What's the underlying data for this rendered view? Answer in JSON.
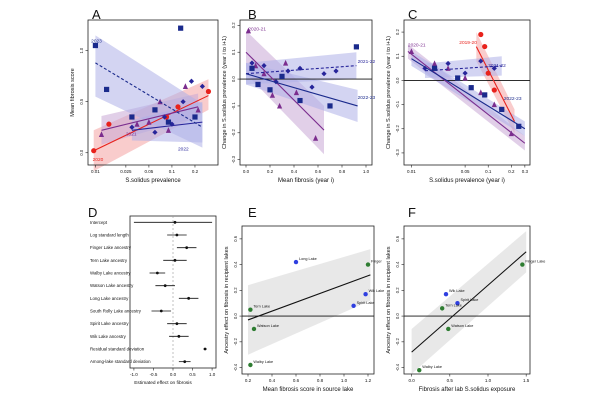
{
  "colors": {
    "y2020": "#e8221c",
    "y2021": "#7b2d8e",
    "y2022": "#27259a",
    "series2023": "#1a2a8c",
    "ciRed": "#f4a3a3",
    "ciPurple": "#c9a8d6",
    "ciBlue": "#aeb0e8",
    "green": "#2e7d32",
    "blueDot": "#2f3fe0",
    "ciGrey": "#d6d6d6"
  },
  "chart_data": [
    {
      "id": "A",
      "panel_label": "A",
      "type": "scatter",
      "xlabel": "S.solidus prevalence",
      "ylabel": "Mean fibrosis score",
      "xscale": "log",
      "xlim": [
        0.008,
        0.4
      ],
      "ylim": [
        -0.12,
        1.3
      ],
      "xticks": [
        0.01,
        0.025,
        0.05,
        0.1,
        0.2
      ],
      "xtick_labels": [
        "0.01",
        "0.025",
        "0.05",
        "0.1",
        "0.2"
      ],
      "yticks": [
        0,
        0.5,
        1
      ],
      "ytick_labels": [
        "0.0",
        "0.5",
        "1.0"
      ],
      "series": [
        {
          "name": "2020",
          "color_key": "y2020",
          "marker": "circle",
          "x": [
            0.0095,
            0.015,
            0.085,
            0.12,
            0.3
          ],
          "y": [
            0.02,
            0.28,
            0.35,
            0.45,
            0.6
          ],
          "fit": {
            "x": [
              0.0095,
              0.3
            ],
            "y": [
              0.02,
              0.56
            ],
            "lo": [
              -0.18,
              0.42
            ],
            "hi": [
              0.22,
              0.72
            ],
            "dash": false
          }
        },
        {
          "name": "2021",
          "color_key": "y2021",
          "marker": "triangle",
          "x": [
            0.012,
            0.035,
            0.05,
            0.07,
            0.09,
            0.15,
            0.22
          ],
          "y": [
            0.18,
            0.28,
            0.3,
            0.5,
            0.22,
            0.65,
            0.42
          ],
          "fit": {
            "x": [
              0.012,
              0.22
            ],
            "y": [
              0.22,
              0.45
            ],
            "lo": [
              0.08,
              0.35
            ],
            "hi": [
              0.36,
              0.58
            ],
            "dash": false
          }
        },
        {
          "name": "2022",
          "color_key": "y2022",
          "marker": "diamond",
          "x": [
            0.03,
            0.06,
            0.08,
            0.1,
            0.14,
            0.18,
            0.25
          ],
          "y": [
            0.25,
            0.2,
            0.35,
            0.28,
            0.5,
            0.7,
            0.65
          ],
          "fit": {
            "x": [
              0.03,
              0.25
            ],
            "y": [
              0.22,
              0.3
            ],
            "lo": [
              0.12,
              0.1
            ],
            "hi": [
              0.32,
              0.5
            ],
            "dash": false
          }
        },
        {
          "name": "2023",
          "color_key": "series2023",
          "marker": "square",
          "x": [
            0.01,
            0.014,
            0.03,
            0.06,
            0.09,
            0.13,
            0.2
          ],
          "y": [
            1.05,
            0.62,
            0.35,
            0.42,
            0.3,
            1.22,
            0.35
          ],
          "fit": {
            "x": [
              0.01,
              0.25
            ],
            "y": [
              0.88,
              0.25
            ],
            "lo": [
              0.55,
              0.05
            ],
            "hi": [
              1.15,
              0.48
            ],
            "dash": true
          }
        }
      ],
      "annotations": [
        {
          "text": "2023",
          "color_key": "series2023",
          "x": 0.0088,
          "y": 1.08
        },
        {
          "text": "2020",
          "color_key": "y2020",
          "x": 0.0092,
          "y": -0.08
        },
        {
          "text": "2021",
          "color_key": "y2021",
          "x": 0.025,
          "y": 0.17
        },
        {
          "text": "2022",
          "color_key": "y2022",
          "x": 0.12,
          "y": 0.02
        }
      ]
    },
    {
      "id": "B",
      "panel_label": "B",
      "type": "scatter",
      "xlabel": "Mean fibrosis (year i)",
      "ylabel": "Change in S.solidus prevalence (year i to i+1)",
      "xlim": [
        -0.05,
        1.05
      ],
      "ylim": [
        -0.32,
        0.22
      ],
      "xticks": [
        0,
        0.2,
        0.4,
        0.6,
        0.8,
        1
      ],
      "xtick_labels": [
        "0.0",
        "0.2",
        "0.4",
        "0.6",
        "0.8",
        "1.0"
      ],
      "yticks": [
        -0.3,
        -0.2,
        -0.1,
        0,
        0.1,
        0.2
      ],
      "ytick_labels": [
        "-0.3",
        "-0.2",
        "-0.1",
        "0.0",
        "0.1",
        "0.2"
      ],
      "hline": 0,
      "series": [
        {
          "name": "2020-21",
          "color_key": "y2021",
          "marker": "triangle",
          "x": [
            0.02,
            0.08,
            0.15,
            0.22,
            0.28,
            0.33,
            0.42,
            0.58
          ],
          "y": [
            0.18,
            0.05,
            0.02,
            -0.06,
            -0.1,
            0.06,
            -0.05,
            -0.22
          ],
          "fit": {
            "x": [
              0,
              0.65
            ],
            "y": [
              0.1,
              -0.19
            ],
            "lo": [
              0.02,
              -0.28
            ],
            "hi": [
              0.18,
              -0.1
            ],
            "dash": false
          }
        },
        {
          "name": "2021-22",
          "color_key": "y2022",
          "marker": "diamond",
          "x": [
            0.05,
            0.15,
            0.25,
            0.35,
            0.45,
            0.55,
            0.65,
            0.75
          ],
          "y": [
            0.06,
            0.05,
            -0.01,
            0.03,
            0.04,
            -0.03,
            0.02,
            0.03
          ],
          "fit": {
            "x": [
              0,
              0.92
            ],
            "y": [
              0.02,
              0.05
            ],
            "lo": [
              -0.02,
              0.0
            ],
            "hi": [
              0.06,
              0.1
            ],
            "dash": true
          }
        },
        {
          "name": "2022-23",
          "color_key": "series2023",
          "marker": "square",
          "x": [
            0.05,
            0.1,
            0.2,
            0.3,
            0.45,
            0.7,
            0.92
          ],
          "y": [
            0.04,
            -0.02,
            -0.04,
            0.01,
            -0.08,
            -0.1,
            0.12
          ],
          "fit": {
            "x": [
              0,
              0.93
            ],
            "y": [
              0.02,
              -0.1
            ],
            "lo": [
              -0.02,
              -0.16
            ],
            "hi": [
              0.06,
              -0.04
            ],
            "dash": false
          }
        }
      ],
      "annotations": [
        {
          "text": "2020-21",
          "color_key": "y2021",
          "x": 0.02,
          "y": 0.18
        },
        {
          "text": "2021-22",
          "color_key": "y2022",
          "x": 0.93,
          "y": 0.06
        },
        {
          "text": "2022-23",
          "color_key": "series2023",
          "x": 0.93,
          "y": -0.075
        }
      ]
    },
    {
      "id": "C",
      "panel_label": "C",
      "type": "scatter",
      "xlabel": "S.solidus prevalence (year i)",
      "ylabel": "Change in S.solidus prevalence (year i to i+1)",
      "xscale": "log",
      "xlim": [
        0.008,
        0.35
      ],
      "ylim": [
        -0.35,
        0.25
      ],
      "xticks": [
        0.01,
        0.05,
        0.1,
        0.2,
        0.3
      ],
      "xtick_labels": [
        "0.01",
        "0.05",
        "0.1",
        "0.2",
        "0.3"
      ],
      "yticks": [
        -0.3,
        -0.2,
        -0.1,
        0,
        0.1,
        0.2
      ],
      "ytick_labels": [
        "-0.3",
        "-0.2",
        "-0.1",
        "0.0",
        "0.1",
        "0.2"
      ],
      "hline": 0,
      "series": [
        {
          "name": "2019-20",
          "color_key": "y2020",
          "marker": "circle",
          "x": [
            0.08,
            0.09,
            0.1,
            0.12,
            0.15
          ],
          "y": [
            0.19,
            0.14,
            0.03,
            -0.04,
            -0.12
          ],
          "fit": {
            "x": [
              0.07,
              0.22
            ],
            "y": [
              0.14,
              -0.17
            ],
            "lo": [
              0.08,
              -0.22
            ],
            "hi": [
              0.2,
              -0.12
            ],
            "dash": false
          }
        },
        {
          "name": "2020-21",
          "color_key": "y2021",
          "marker": "triangle",
          "x": [
            0.01,
            0.02,
            0.03,
            0.05,
            0.08,
            0.12,
            0.2
          ],
          "y": [
            0.12,
            0.07,
            0.05,
            0.01,
            -0.05,
            -0.1,
            -0.22
          ],
          "fit": {
            "x": [
              0.009,
              0.3
            ],
            "y": [
              0.12,
              -0.26
            ],
            "lo": [
              0.09,
              -0.29
            ],
            "hi": [
              0.15,
              -0.23
            ],
            "dash": false
          }
        },
        {
          "name": "2021-22",
          "color_key": "y2022",
          "marker": "diamond",
          "x": [
            0.015,
            0.03,
            0.05,
            0.08,
            0.12
          ],
          "y": [
            0.05,
            0.07,
            0.03,
            0.08,
            0.05
          ],
          "fit": {
            "x": [
              0.015,
              0.15
            ],
            "y": [
              0.04,
              0.06
            ],
            "lo": [
              0.01,
              0.02
            ],
            "hi": [
              0.07,
              0.1
            ],
            "dash": true
          }
        },
        {
          "name": "2022-23",
          "color_key": "series2023",
          "marker": "square",
          "x": [
            0.02,
            0.04,
            0.06,
            0.09,
            0.15,
            0.25
          ],
          "y": [
            0.05,
            0.01,
            -0.03,
            -0.06,
            -0.12,
            -0.19
          ],
          "fit": {
            "x": [
              0.01,
              0.3
            ],
            "y": [
              0.09,
              -0.2
            ],
            "lo": [
              0.06,
              -0.23
            ],
            "hi": [
              0.12,
              -0.17
            ],
            "dash": false
          }
        }
      ],
      "annotations": [
        {
          "text": "2020-21",
          "color_key": "y2021",
          "x": 0.009,
          "y": 0.14
        },
        {
          "text": "2019-20",
          "color_key": "y2020",
          "x": 0.042,
          "y": 0.15
        },
        {
          "text": "2021-22",
          "color_key": "y2022",
          "x": 0.1,
          "y": 0.055
        },
        {
          "text": "2022-23",
          "color_key": "series2023",
          "x": 0.16,
          "y": -0.08
        }
      ]
    },
    {
      "id": "D",
      "panel_label": "D",
      "type": "forest",
      "xlabel": "Estimated effect on fibrosis",
      "xlim": [
        -1.1,
        1.1
      ],
      "vline": 0,
      "xticks": [
        -1,
        -0.5,
        0,
        0.5,
        1
      ],
      "xtick_labels": [
        "-1.0",
        "-0.5",
        "0.0",
        "0.5",
        "1.0"
      ],
      "rows": [
        {
          "label": "Intercept",
          "est": 0.05,
          "lo": -1.0,
          "hi": 1.0
        },
        {
          "label": "Log standard length",
          "est": 0.1,
          "lo": -0.15,
          "hi": 0.35
        },
        {
          "label": "Finger Lake ancestry",
          "est": 0.35,
          "lo": 0.1,
          "hi": 0.6
        },
        {
          "label": "Tern Lake ancestry",
          "est": 0.05,
          "lo": -0.25,
          "hi": 0.35
        },
        {
          "label": "Walby Lake ancestry",
          "est": -0.4,
          "lo": -0.6,
          "hi": -0.2
        },
        {
          "label": "Watson Lake ancestry",
          "est": -0.2,
          "lo": -0.45,
          "hi": 0.05
        },
        {
          "label": "Long Lake ancestry",
          "est": 0.4,
          "lo": 0.15,
          "hi": 0.65
        },
        {
          "label": "South Rolly Lake ancestry",
          "est": -0.3,
          "lo": -0.55,
          "hi": -0.05
        },
        {
          "label": "Spirit Lake ancestry",
          "est": 0.1,
          "lo": -0.15,
          "hi": 0.35
        },
        {
          "label": "Wik Lake ancestry",
          "est": 0.15,
          "lo": -0.1,
          "hi": 0.4
        },
        {
          "label": "Residual standard deviation",
          "est": 0.82,
          "lo": 0.78,
          "hi": 0.86
        },
        {
          "label": "Among-lake standard deviation",
          "est": 0.3,
          "lo": 0.15,
          "hi": 0.45
        }
      ]
    },
    {
      "id": "E",
      "panel_label": "E",
      "type": "scatter",
      "xlabel": "Mean fibrosis score in source lake",
      "ylabel": "Ancestry effect on fibrosis in recipient lakes",
      "xlim": [
        0.15,
        1.25
      ],
      "ylim": [
        -0.45,
        0.7
      ],
      "xticks": [
        0.2,
        0.4,
        0.6,
        0.8,
        1,
        1.2
      ],
      "xtick_labels": [
        "0.2",
        "0.4",
        "0.6",
        "0.8",
        "1.0",
        "1.2"
      ],
      "yticks": [
        -0.4,
        -0.2,
        0,
        0.2,
        0.4,
        0.6
      ],
      "ytick_labels": [
        "-0.4",
        "-0.2",
        "0.0",
        "0.2",
        "0.4",
        "0.6"
      ],
      "hline": 0,
      "fit": {
        "x": [
          0.2,
          1.22
        ],
        "y": [
          -0.03,
          0.32
        ],
        "lo": [
          -0.3,
          0.12
        ],
        "hi": [
          0.24,
          0.52
        ]
      },
      "points": [
        {
          "name": "Long Lake",
          "x": 0.6,
          "y": 0.42,
          "color_key": "blueDot"
        },
        {
          "name": "Finger",
          "x": 1.2,
          "y": 0.4,
          "color_key": "green"
        },
        {
          "name": "Wik Lake",
          "x": 1.18,
          "y": 0.17,
          "color_key": "blueDot"
        },
        {
          "name": "Spirit Lake",
          "x": 1.08,
          "y": 0.08,
          "color_key": "blueDot"
        },
        {
          "name": "Tern Lake",
          "x": 0.22,
          "y": 0.05,
          "color_key": "green"
        },
        {
          "name": "Watson Lake",
          "x": 0.25,
          "y": -0.1,
          "color_key": "green"
        },
        {
          "name": "Walby Lake",
          "x": 0.22,
          "y": -0.38,
          "color_key": "green"
        }
      ]
    },
    {
      "id": "F",
      "panel_label": "F",
      "type": "scatter",
      "xlabel": "Fibrosis after lab S.solidus exposure",
      "ylabel": "Ancestry effect on fibrosis in recipient lakes",
      "xlim": [
        -0.1,
        1.55
      ],
      "ylim": [
        -0.45,
        0.7
      ],
      "xticks": [
        0,
        0.5,
        1,
        1.5
      ],
      "xtick_labels": [
        "0.0",
        "0.5",
        "1.0",
        "1.5"
      ],
      "yticks": [
        -0.4,
        -0.2,
        0,
        0.2,
        0.4,
        0.6
      ],
      "ytick_labels": [
        "-0.4",
        "-0.2",
        "0.0",
        "0.2",
        "0.4",
        "0.6"
      ],
      "hline": 0,
      "fit": {
        "x": [
          0,
          1.5
        ],
        "y": [
          -0.28,
          0.5
        ],
        "lo": [
          -0.45,
          0.34
        ],
        "hi": [
          -0.1,
          0.66
        ]
      },
      "points": [
        {
          "name": "Finger Lake",
          "x": 1.45,
          "y": 0.4,
          "color_key": "green"
        },
        {
          "name": "Wik Lake",
          "x": 0.45,
          "y": 0.17,
          "color_key": "blueDot"
        },
        {
          "name": "Spirit Lake",
          "x": 0.6,
          "y": 0.1,
          "color_key": "blueDot"
        },
        {
          "name": "Tern Lake",
          "x": 0.4,
          "y": 0.06,
          "color_key": "green"
        },
        {
          "name": "Watson Lake",
          "x": 0.48,
          "y": -0.1,
          "color_key": "green"
        },
        {
          "name": "Walby Lake",
          "x": 0.1,
          "y": -0.42,
          "color_key": "green"
        }
      ]
    }
  ]
}
